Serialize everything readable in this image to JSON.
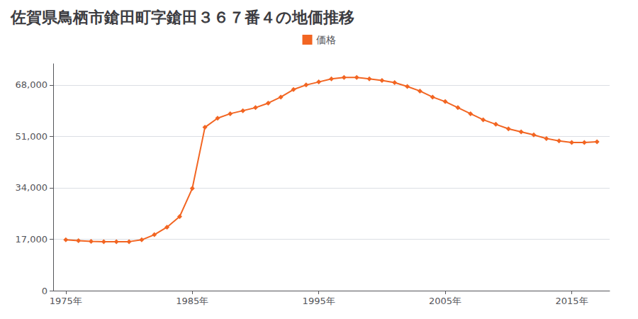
{
  "chart_data": {
    "type": "line",
    "title": "佐賀県鳥栖市鎗田町字鎗田３６７番４の地価推移",
    "x": [
      1975,
      1976,
      1977,
      1978,
      1979,
      1980,
      1981,
      1982,
      1983,
      1984,
      1985,
      1986,
      1987,
      1988,
      1989,
      1990,
      1991,
      1992,
      1993,
      1994,
      1995,
      1996,
      1997,
      1998,
      1999,
      2000,
      2001,
      2002,
      2003,
      2004,
      2005,
      2006,
      2007,
      2008,
      2009,
      2010,
      2011,
      2012,
      2013,
      2014,
      2015,
      2016,
      2017
    ],
    "series": [
      {
        "name": "価格",
        "color": "#f26522",
        "marker": "diamond",
        "values": [
          16800,
          16500,
          16300,
          16200,
          16200,
          16200,
          16800,
          18500,
          21000,
          24500,
          33800,
          54000,
          57000,
          58500,
          59500,
          60500,
          62000,
          64000,
          66500,
          68000,
          69000,
          70000,
          70500,
          70500,
          70000,
          69500,
          68800,
          67500,
          66000,
          64000,
          62500,
          60500,
          58500,
          56500,
          55000,
          53500,
          52500,
          51500,
          50300,
          49500,
          49000,
          49000,
          49200
        ]
      }
    ],
    "xlim": [
      1974,
      2018
    ],
    "xticks": [
      {
        "value": 1975,
        "label": "1975年"
      },
      {
        "value": 1985,
        "label": "1985年"
      },
      {
        "value": 1995,
        "label": "1995年"
      },
      {
        "value": 2005,
        "label": "2005年"
      },
      {
        "value": 2015,
        "label": "2015年"
      }
    ],
    "ylim": [
      0,
      75000
    ],
    "yticks": [
      0,
      {
        "value": 17000,
        "label": "17,000"
      },
      {
        "value": 34000,
        "label": "34,000"
      },
      {
        "value": 51000,
        "label": "51,000"
      },
      {
        "value": 68000,
        "label": "68,000"
      }
    ],
    "grid": true,
    "legend": "top"
  }
}
